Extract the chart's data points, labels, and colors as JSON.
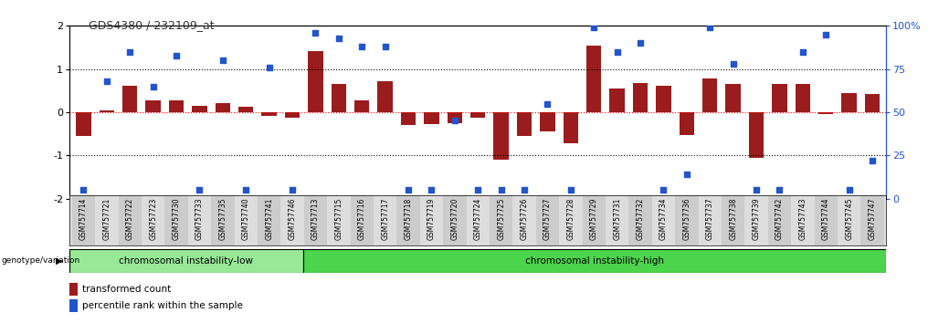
{
  "title": "GDS4380 / 232109_at",
  "samples": [
    "GSM757714",
    "GSM757721",
    "GSM757722",
    "GSM757723",
    "GSM757730",
    "GSM757733",
    "GSM757735",
    "GSM757740",
    "GSM757741",
    "GSM757746",
    "GSM757713",
    "GSM757715",
    "GSM757716",
    "GSM757717",
    "GSM757718",
    "GSM757719",
    "GSM757720",
    "GSM757724",
    "GSM757725",
    "GSM757726",
    "GSM757727",
    "GSM757728",
    "GSM757729",
    "GSM757731",
    "GSM757732",
    "GSM757734",
    "GSM757736",
    "GSM757737",
    "GSM757738",
    "GSM757739",
    "GSM757742",
    "GSM757743",
    "GSM757744",
    "GSM757745",
    "GSM757747"
  ],
  "bar_values": [
    -0.55,
    0.05,
    0.62,
    0.28,
    0.28,
    0.15,
    0.22,
    0.12,
    -0.08,
    -0.12,
    1.42,
    0.65,
    0.27,
    0.72,
    -0.3,
    -0.28,
    -0.25,
    -0.12,
    -1.1,
    -0.55,
    -0.45,
    -0.72,
    1.55,
    0.56,
    0.67,
    0.62,
    -0.52,
    0.78,
    0.65,
    -1.05,
    0.65,
    0.65,
    -0.05,
    0.45,
    0.42
  ],
  "percentile_values": [
    5,
    68,
    85,
    65,
    83,
    5,
    80,
    5,
    76,
    5,
    96,
    93,
    88,
    88,
    5,
    5,
    45,
    5,
    5,
    5,
    55,
    5,
    99,
    85,
    90,
    5,
    14,
    99,
    78,
    5,
    5,
    85,
    95,
    5,
    22
  ],
  "group1_label": "chromosomal instability-low",
  "group2_label": "chromosomal instability-high",
  "group1_count": 10,
  "group2_count": 25,
  "bar_color": "#9B1C1C",
  "dot_color": "#2255CC",
  "group1_bg": "#98E898",
  "group2_bg": "#4CD44C",
  "genotype_label": "genotype/variation",
  "legend_bar": "transformed count",
  "legend_dot": "percentile rank within the sample",
  "ylim": [
    -2,
    2
  ],
  "y2lim": [
    0,
    100
  ],
  "yticks": [
    -2,
    -1,
    0,
    1,
    2
  ],
  "y2ticks": [
    0,
    25,
    50,
    75,
    100
  ],
  "hline_dashed_vals": [
    1,
    -1
  ],
  "hline_red_val": 0,
  "background_color": "#ffffff"
}
